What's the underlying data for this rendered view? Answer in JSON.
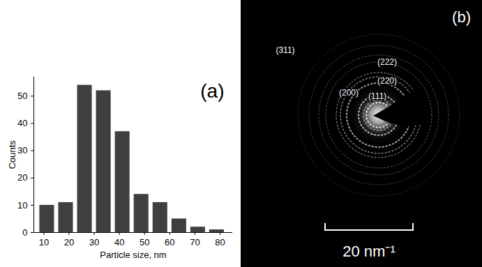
{
  "chart_data": {
    "type": "histogram",
    "title": "(a)",
    "xlabel": "Particle size, nm",
    "ylabel": "Counts",
    "bins": [
      7.5,
      15,
      22.5,
      30,
      37.5,
      45,
      52.5,
      60,
      67.5,
      75,
      82.5
    ],
    "values": [
      10,
      11,
      54,
      52,
      37,
      14,
      11,
      5,
      2,
      1
    ],
    "color": "#3f3f3f",
    "xlim": [
      6,
      85
    ],
    "xticks": [
      10,
      20,
      30,
      40,
      50,
      60,
      70,
      80
    ],
    "ylim": [
      0,
      57
    ],
    "yticks": [
      0,
      10,
      20,
      30,
      40,
      50
    ]
  },
  "diffraction_pattern": {
    "title": "(b)",
    "ring_labels": [
      "(111)",
      "(200)",
      "(220)",
      "(222)",
      "(311)"
    ],
    "scale_bar_label": "20 nm⁻¹"
  }
}
